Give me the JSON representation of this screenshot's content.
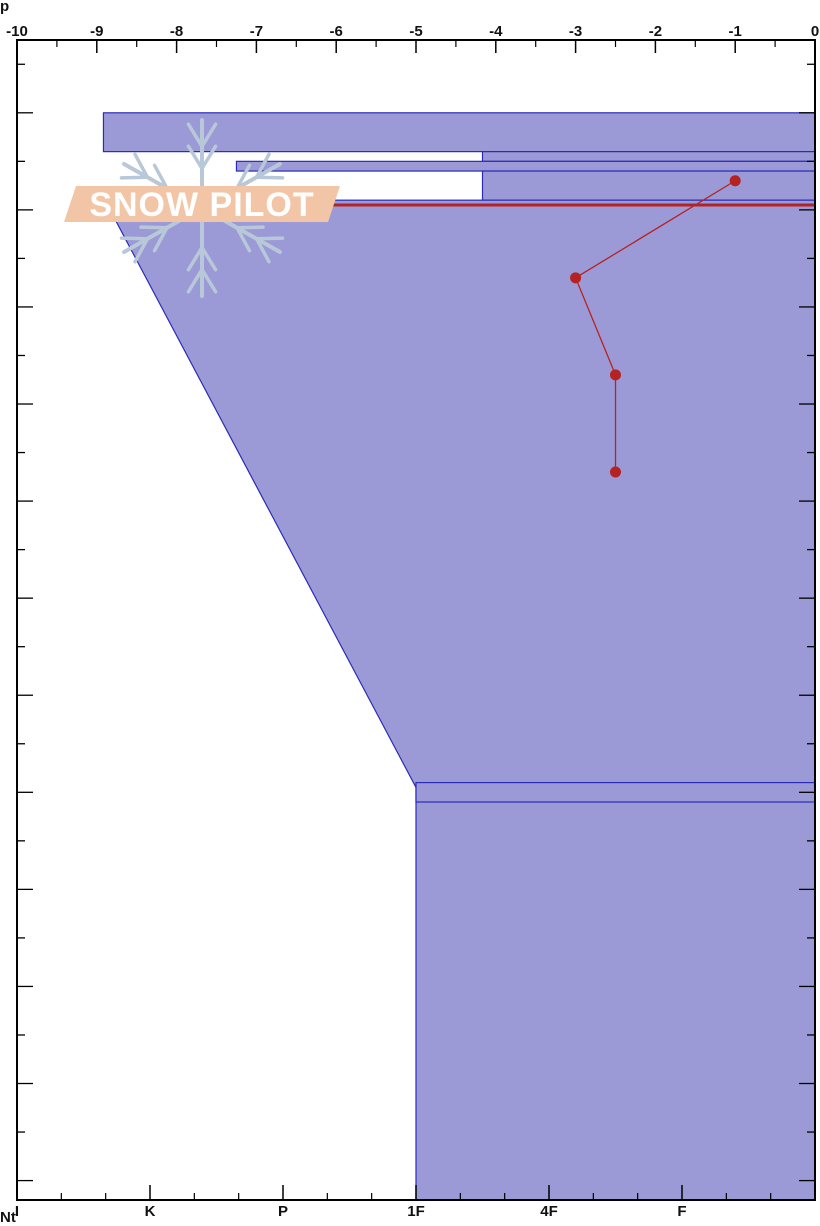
{
  "corner_label": "p",
  "bottom_label": "Nt",
  "logo": {
    "text": "SNOW PILOT",
    "text_color": "#f2c5a6",
    "flake_color": "#b8c8d8"
  },
  "colors": {
    "hardness_fill": "#9b9ad6",
    "hardness_stroke": "#2b2bb8",
    "temperature": "#b52222",
    "axis": "#000000"
  },
  "chart_data": {
    "type": "area",
    "title": "",
    "top_axis": {
      "label": "",
      "range": [
        -10,
        0
      ],
      "ticks": [
        -10,
        -9,
        -8,
        -7,
        -6,
        -5,
        -4,
        -3,
        -2,
        -1,
        0
      ],
      "tick_labels": [
        "-10",
        "-9",
        "-8",
        "-7",
        "-6",
        "-5",
        "-4",
        "-3",
        "-2",
        "-1",
        "0"
      ]
    },
    "bottom_axis": {
      "label": "",
      "categories": [
        "I",
        "K",
        "P",
        "1F",
        "4F",
        "F"
      ]
    },
    "hardness_profile": [
      {
        "hardness_index": 0.65,
        "depth_from": 0.0,
        "depth_to": 0.4
      },
      {
        "hardness_index": 3.5,
        "depth_from": 0.4,
        "depth_to": 0.5
      },
      {
        "hardness_index": 1.65,
        "depth_from": 0.5,
        "depth_to": 0.6
      },
      {
        "hardness_index": 3.5,
        "depth_from": 0.6,
        "depth_to": 0.9
      },
      {
        "hardness_index": 0.65,
        "depth_from": 0.9,
        "depth_to": 0.95
      },
      {
        "hardness_index": 3.0,
        "depth_from": 6.9,
        "depth_to": 7.1
      }
    ],
    "hardness_slope": {
      "from": {
        "hardness_index": 0.68,
        "depth": 0.95
      },
      "to": {
        "hardness_index": 3.0,
        "depth": 6.95
      }
    },
    "hardness_base": {
      "hardness_index": 3.0,
      "depth_from": 6.95,
      "depth_to": 11.2
    },
    "temperature_profile": [
      {
        "temperature": -1.0,
        "depth": 0.7
      },
      {
        "temperature": -3.0,
        "depth": 1.7
      },
      {
        "temperature": -2.5,
        "depth": 2.7
      },
      {
        "temperature": -2.5,
        "depth": 3.7
      }
    ],
    "surface_marker": {
      "depth": 0.95,
      "hardness_index": 0.68
    },
    "depth_range": [
      -0.75,
      11.2
    ]
  }
}
